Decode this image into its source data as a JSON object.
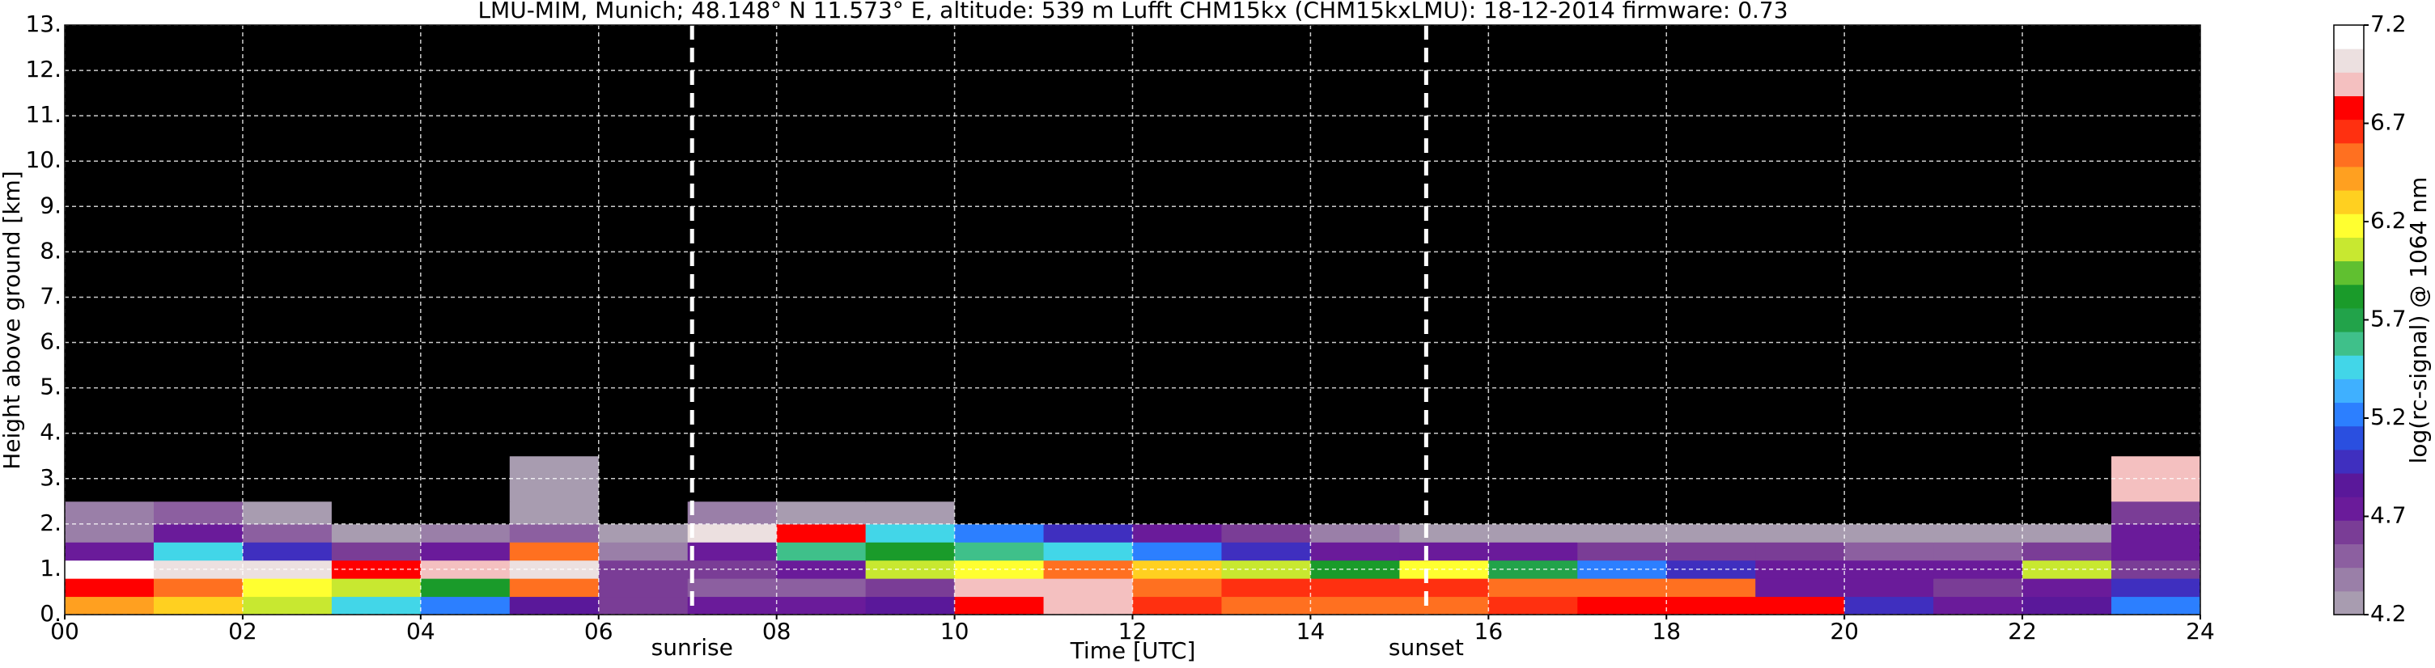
{
  "chart_data": {
    "type": "heatmap",
    "title": "LMU-MIM, Munich; 48.148° N 11.573° E, altitude: 539 m    Lufft CHM15kx (CHM15kxLMU): 18-12-2014    firmware: 0.73",
    "xlabel": "Time [UTC]",
    "ylabel": "Height above ground [km]",
    "colorbar_label": "log(rc-signal) @ 1064 nm",
    "x_edges": [
      0,
      1,
      2,
      3,
      4,
      5,
      6,
      7,
      8,
      9,
      10,
      11,
      12,
      13,
      14,
      15,
      16,
      17,
      18,
      19,
      20,
      21,
      22,
      23,
      24
    ],
    "y_edges": [
      0,
      0.4,
      0.8,
      1.2,
      1.6,
      2.0,
      2.5,
      3.5,
      13
    ],
    "z": [
      [
        6.4,
        6.3,
        6.0,
        5.5,
        5.2,
        4.9,
        4.6,
        4.8,
        4.7,
        4.9,
        6.8,
        6.9,
        6.7,
        6.6,
        6.6,
        6.6,
        6.7,
        6.8,
        6.8,
        6.8,
        5.0,
        4.8,
        4.9,
        5.2
      ],
      [
        6.8,
        6.6,
        6.2,
        6.0,
        5.8,
        6.5,
        4.6,
        4.5,
        4.5,
        4.6,
        6.9,
        6.9,
        6.5,
        6.7,
        6.7,
        6.7,
        6.6,
        6.6,
        6.5,
        4.8,
        4.7,
        4.6,
        4.8,
        5.0
      ],
      [
        7.1,
        7.0,
        7.0,
        6.8,
        6.9,
        7.0,
        4.6,
        4.6,
        4.7,
        6.0,
        6.2,
        6.5,
        6.3,
        6.0,
        5.8,
        6.2,
        5.7,
        5.2,
        5.0,
        4.8,
        4.8,
        4.8,
        6.0,
        4.6
      ],
      [
        4.8,
        5.5,
        5.0,
        4.6,
        4.7,
        6.5,
        4.4,
        4.7,
        5.6,
        5.8,
        5.6,
        5.4,
        5.2,
        5.0,
        4.8,
        4.8,
        4.7,
        4.6,
        4.6,
        4.6,
        4.5,
        4.5,
        4.6,
        4.8
      ],
      [
        4.4,
        4.8,
        4.5,
        4.3,
        4.4,
        4.5,
        4.2,
        7.0,
        6.8,
        5.4,
        5.2,
        5.0,
        4.8,
        4.6,
        4.4,
        4.3,
        4.2,
        4.2,
        4.2,
        4.2,
        4.2,
        4.2,
        4.3,
        4.7
      ],
      [
        4.4,
        4.5,
        4.3,
        4.0,
        4.1,
        4.3,
        4.1,
        4.4,
        4.3,
        4.2,
        4.1,
        4.0,
        4.0,
        4.0,
        4.0,
        4.0,
        4.0,
        4.0,
        4.0,
        4.0,
        4.0,
        4.0,
        4.0,
        4.6
      ],
      [
        4.0,
        4.0,
        4.0,
        4.0,
        4.0,
        4.2,
        4.0,
        4.1,
        4.1,
        4.0,
        4.0,
        4.0,
        4.0,
        4.0,
        4.0,
        4.0,
        4.0,
        4.0,
        4.0,
        4.0,
        4.0,
        4.0,
        4.0,
        6.9
      ],
      [
        4.0,
        4.0,
        4.0,
        4.0,
        4.0,
        4.0,
        4.0,
        4.0,
        4.0,
        4.0,
        4.0,
        4.0,
        4.0,
        4.0,
        4.0,
        4.0,
        4.0,
        4.0,
        4.0,
        4.0,
        4.0,
        4.0,
        4.0,
        4.0
      ]
    ],
    "xlim": [
      0,
      24
    ],
    "ylim": [
      0,
      13
    ],
    "clim": [
      4.2,
      7.2
    ],
    "xticks": [
      {
        "value": 0,
        "label": "00"
      },
      {
        "value": 2,
        "label": "02"
      },
      {
        "value": 4,
        "label": "04"
      },
      {
        "value": 6,
        "label": "06"
      },
      {
        "value": 8,
        "label": "08"
      },
      {
        "value": 10,
        "label": "10"
      },
      {
        "value": 12,
        "label": "12"
      },
      {
        "value": 14,
        "label": "14"
      },
      {
        "value": 16,
        "label": "16"
      },
      {
        "value": 18,
        "label": "18"
      },
      {
        "value": 20,
        "label": "20"
      },
      {
        "value": 22,
        "label": "22"
      },
      {
        "value": 24,
        "label": "24"
      }
    ],
    "yticks": [
      {
        "value": 0,
        "label": "0."
      },
      {
        "value": 1,
        "label": "1."
      },
      {
        "value": 2,
        "label": "2."
      },
      {
        "value": 3,
        "label": "3."
      },
      {
        "value": 4,
        "label": "4."
      },
      {
        "value": 5,
        "label": "5."
      },
      {
        "value": 6,
        "label": "6."
      },
      {
        "value": 7,
        "label": "7."
      },
      {
        "value": 8,
        "label": "8."
      },
      {
        "value": 9,
        "label": "9."
      },
      {
        "value": 10,
        "label": "10."
      },
      {
        "value": 11,
        "label": "11."
      },
      {
        "value": 12,
        "label": "12."
      },
      {
        "value": 13,
        "label": "13."
      }
    ],
    "cticks": [
      4.2,
      4.7,
      5.2,
      5.7,
      6.2,
      6.7,
      7.2
    ],
    "colormap": [
      "#a89cb0",
      "#9a7fa8",
      "#8c5fa0",
      "#7a3d96",
      "#6a1b9a",
      "#5a189a",
      "#3f2fbf",
      "#2a4fe0",
      "#2c7fff",
      "#3fb0ff",
      "#42d6e8",
      "#3fc08a",
      "#22a34a",
      "#1a9b2a",
      "#60c030",
      "#c8e830",
      "#ffff30",
      "#ffd020",
      "#ffa020",
      "#ff7020",
      "#ff3010",
      "#ff0000",
      "#f4c0c0",
      "#ece0e0",
      "#ffffff"
    ],
    "under_color": "#000000",
    "grid": true,
    "annotations": [
      {
        "x": 7.05,
        "label": "sunrise"
      },
      {
        "x": 15.3,
        "label": "sunset"
      }
    ]
  }
}
